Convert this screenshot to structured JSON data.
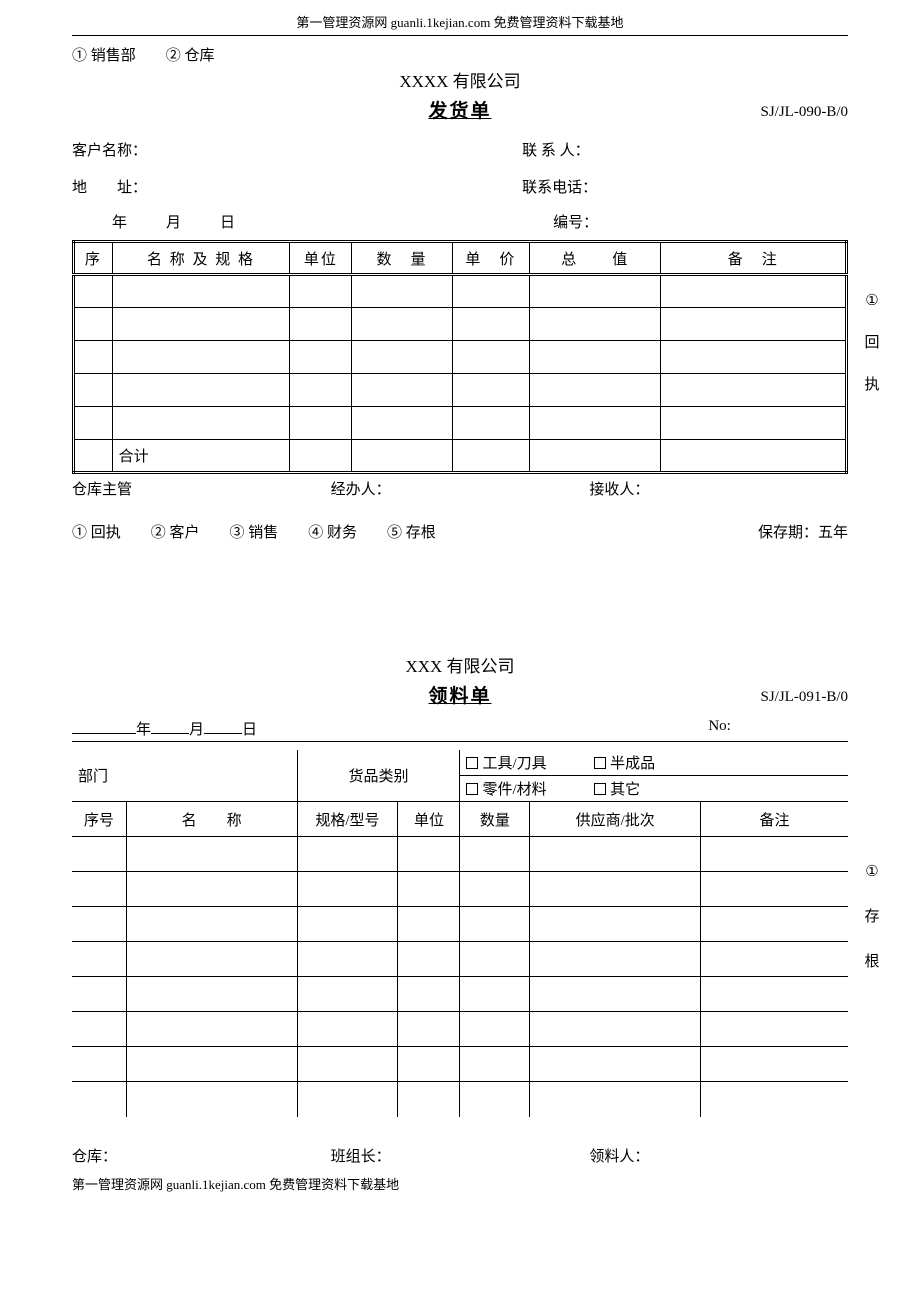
{
  "header_text": "第一管理资源网 guanli.1kejian.com 免费管理资料下载基地",
  "footer_text": "第一管理资源网 guanli.1kejian.com 免费管理资料下载基地",
  "form1": {
    "top_dept": "① 销售部　　② 仓库",
    "company": "XXXX 有限公司",
    "title": "发货单",
    "doc_code": "SJ/JL-090-B/0",
    "customer_label": "客户名称：",
    "contact_label": "联 系 人：",
    "address_label": "地　　址：",
    "phone_label": "联系电话：",
    "date_text": "年　　月　　日",
    "serial_label": "编号：",
    "columns": {
      "seq": "序",
      "name_spec": "名 称 及 规 格",
      "unit": "单位",
      "qty": "数　量",
      "price": "单　价",
      "total": "总　　值",
      "remark": "备　注"
    },
    "col_widths": [
      "5%",
      "23%",
      "8%",
      "13%",
      "10%",
      "17%",
      "24%"
    ],
    "blank_rows": 5,
    "sum_label": "合计",
    "side_annot": [
      "①",
      "回",
      "执"
    ],
    "sign": {
      "warehouse": "仓库主管",
      "handler": "经办人：",
      "receiver": "接收人："
    },
    "copies": "① 回执　　② 客户　　③ 销售　　④ 财务　　⑤ 存根",
    "retention": "保存期：五年"
  },
  "form2": {
    "company": "XXX 有限公司",
    "title": "领料单",
    "doc_code": "SJ/JL-091-B/0",
    "date_year": "年",
    "date_month": "月",
    "date_day": "日",
    "no_label": "No:",
    "dept_label": "部门",
    "category_label": "货品类别",
    "cat_tool": "工具/刀具",
    "cat_semi": "半成品",
    "cat_part": "零件/材料",
    "cat_other": "其它",
    "columns": {
      "seq": "序号",
      "name": "名　　称",
      "spec": "规格/型号",
      "unit": "单位",
      "qty": "数量",
      "supplier": "供应商/批次",
      "remark": "备注"
    },
    "col_widths": [
      "7%",
      "22%",
      "13%",
      "8%",
      "9%",
      "22%",
      "19%"
    ],
    "blank_rows": 8,
    "side_annot": [
      "①",
      "存",
      "根"
    ],
    "sign": {
      "warehouse": "仓库：",
      "leader": "班组长：",
      "picker": "领料人："
    }
  }
}
